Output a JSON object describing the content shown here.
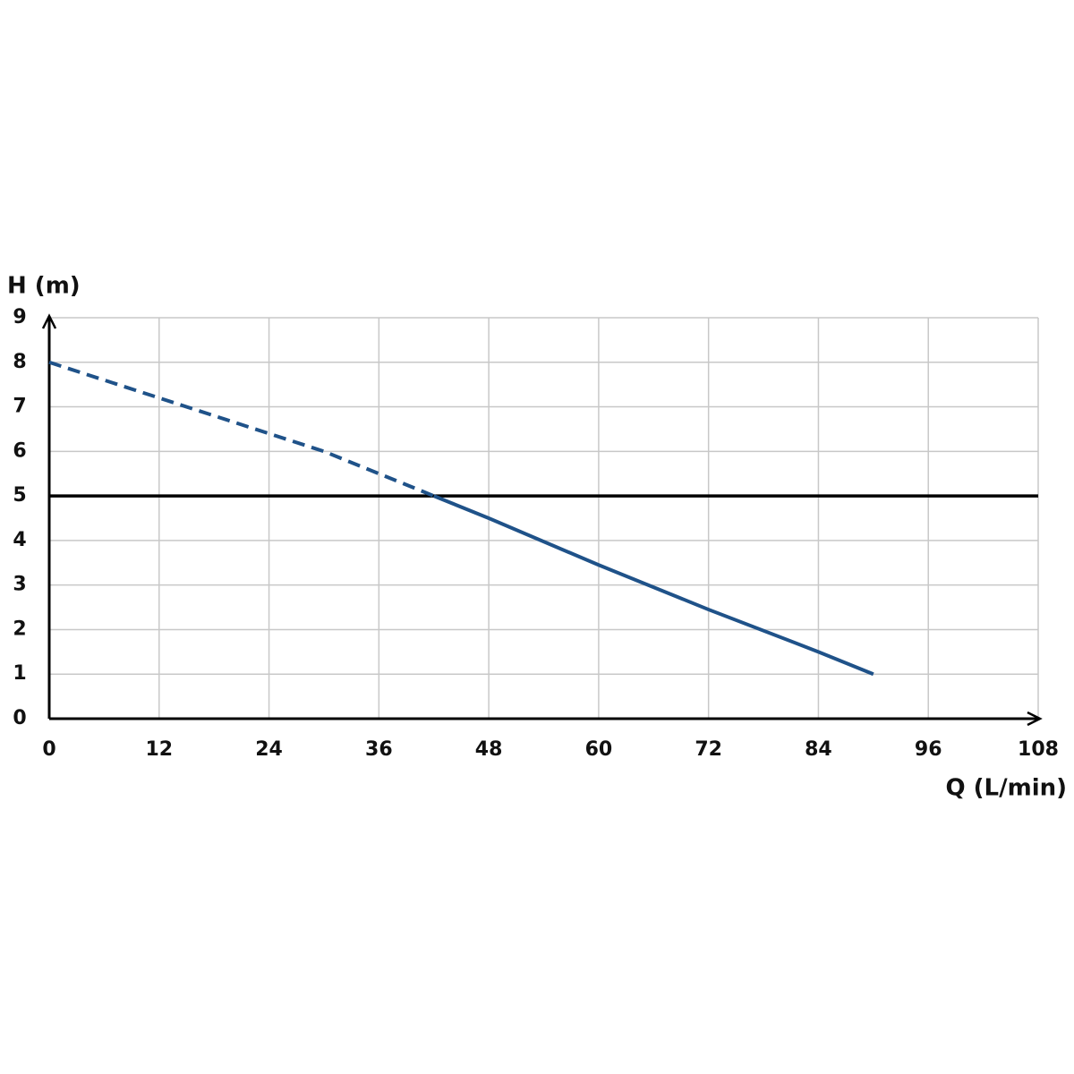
{
  "chart_data": {
    "type": "line",
    "x_label": "Q (L/min)",
    "y_label": "H (m)",
    "xlim": [
      0,
      108
    ],
    "xticks": [
      0,
      12,
      24,
      36,
      48,
      60,
      72,
      84,
      96,
      108
    ],
    "ylim": [
      0,
      9
    ],
    "yticks": [
      0,
      1,
      2,
      3,
      4,
      5,
      6,
      7,
      8,
      9
    ],
    "grid": true,
    "reference_line": {
      "y": 5,
      "color": "#000000"
    },
    "series": [
      {
        "style": "dashed",
        "color": "#1f5289",
        "x": [
          0,
          12,
          24,
          30,
          36,
          42
        ],
        "values": [
          8,
          7.2,
          6.4,
          6.0,
          5.5,
          5
        ]
      },
      {
        "style": "solid",
        "color": "#1f5289",
        "x": [
          42,
          48,
          60,
          72,
          84,
          90
        ],
        "values": [
          5,
          4.5,
          3.45,
          2.45,
          1.5,
          1
        ]
      }
    ]
  }
}
